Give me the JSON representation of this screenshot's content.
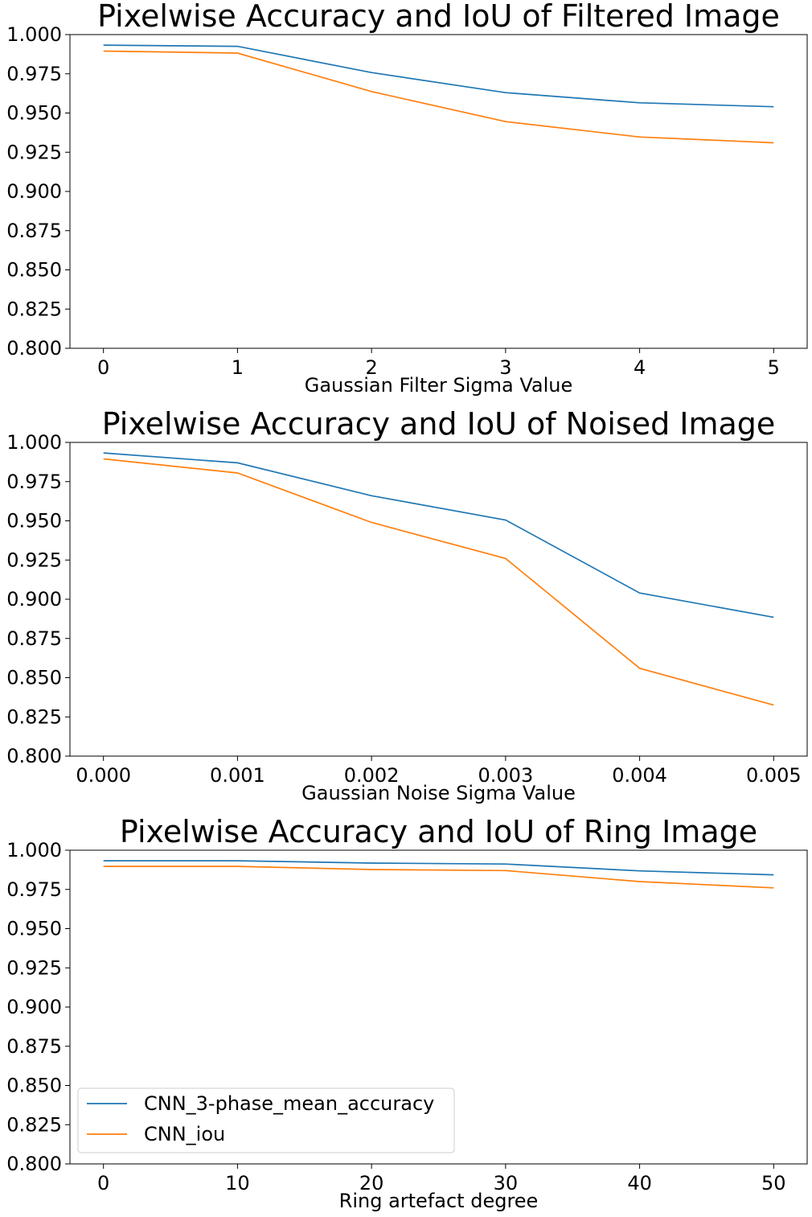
{
  "figure": {
    "legend_entries": [
      "CNN_3-phase_mean_accuracy",
      "CNN_iou"
    ],
    "series_colors": [
      "#1f77b4",
      "#ff7f0e"
    ]
  },
  "chart_data": [
    {
      "type": "line",
      "title": "Pixelwise Accuracy and IoU of Filtered Image",
      "xlabel": "Gaussian Filter Sigma Value",
      "ylabel": "",
      "x": [
        0,
        1,
        2,
        3,
        4,
        5
      ],
      "x_tick_labels": [
        "0",
        "1",
        "2",
        "3",
        "4",
        "5"
      ],
      "xlim": [
        -0.25,
        5.25
      ],
      "ylim": [
        0.8,
        1.0
      ],
      "y_ticks": [
        0.8,
        0.825,
        0.85,
        0.875,
        0.9,
        0.925,
        0.95,
        0.975,
        1.0
      ],
      "y_tick_labels": [
        "0.800",
        "0.825",
        "0.850",
        "0.875",
        "0.900",
        "0.925",
        "0.950",
        "0.975",
        "1.000"
      ],
      "grid": false,
      "legend": null,
      "series": [
        {
          "name": "CNN_3-phase_mean_accuracy",
          "color": "#1f77b4",
          "values": [
            0.9933,
            0.9925,
            0.9758,
            0.963,
            0.9565,
            0.954
          ]
        },
        {
          "name": "CNN_iou",
          "color": "#ff7f0e",
          "values": [
            0.9895,
            0.9882,
            0.9637,
            0.9445,
            0.9347,
            0.931
          ]
        }
      ]
    },
    {
      "type": "line",
      "title": "Pixelwise Accuracy and IoU of Noised Image",
      "xlabel": "Gaussian Noise Sigma Value",
      "ylabel": "",
      "x": [
        0.0,
        0.001,
        0.002,
        0.003,
        0.004,
        0.005
      ],
      "x_tick_labels": [
        "0.000",
        "0.001",
        "0.002",
        "0.003",
        "0.004",
        "0.005"
      ],
      "xlim": [
        -0.00025,
        0.00525
      ],
      "ylim": [
        0.8,
        1.0
      ],
      "y_ticks": [
        0.8,
        0.825,
        0.85,
        0.875,
        0.9,
        0.925,
        0.95,
        0.975,
        1.0
      ],
      "y_tick_labels": [
        "0.800",
        "0.825",
        "0.850",
        "0.875",
        "0.900",
        "0.925",
        "0.950",
        "0.975",
        "1.000"
      ],
      "grid": false,
      "legend": null,
      "series": [
        {
          "name": "CNN_3-phase_mean_accuracy",
          "color": "#1f77b4",
          "values": [
            0.9933,
            0.987,
            0.966,
            0.9505,
            0.904,
            0.8885
          ]
        },
        {
          "name": "CNN_iou",
          "color": "#ff7f0e",
          "values": [
            0.9895,
            0.9805,
            0.949,
            0.926,
            0.856,
            0.8325
          ]
        }
      ]
    },
    {
      "type": "line",
      "title": "Pixelwise Accuracy and IoU of Ring Image",
      "xlabel": "Ring artefact degree",
      "ylabel": "",
      "x": [
        0,
        10,
        20,
        30,
        40,
        50
      ],
      "x_tick_labels": [
        "0",
        "10",
        "20",
        "30",
        "40",
        "50"
      ],
      "xlim": [
        -2.5,
        52.5
      ],
      "ylim": [
        0.8,
        1.0
      ],
      "y_ticks": [
        0.8,
        0.825,
        0.85,
        0.875,
        0.9,
        0.925,
        0.95,
        0.975,
        1.0
      ],
      "y_tick_labels": [
        "0.800",
        "0.825",
        "0.850",
        "0.875",
        "0.900",
        "0.925",
        "0.950",
        "0.975",
        "1.000"
      ],
      "grid": false,
      "legend": "lower-left",
      "series": [
        {
          "name": "CNN_3-phase_mean_accuracy",
          "color": "#1f77b4",
          "values": [
            0.9933,
            0.9933,
            0.9918,
            0.9912,
            0.9868,
            0.9843
          ]
        },
        {
          "name": "CNN_iou",
          "color": "#ff7f0e",
          "values": [
            0.9897,
            0.9897,
            0.9877,
            0.987,
            0.98,
            0.976
          ]
        }
      ]
    }
  ]
}
